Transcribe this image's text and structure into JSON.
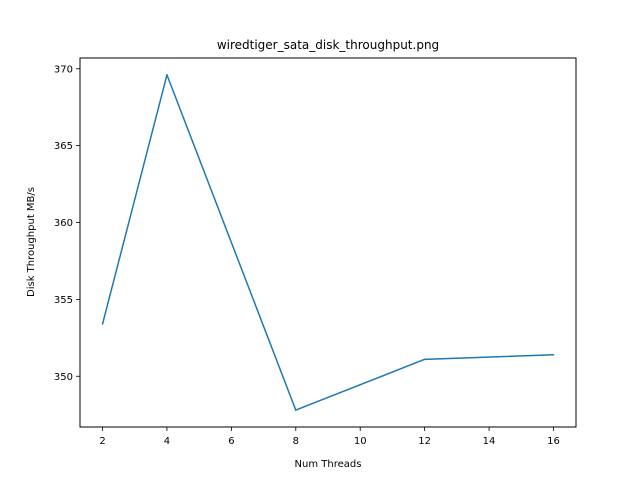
{
  "chart_data": {
    "type": "line",
    "title": "wiredtiger_sata_disk_throughput.png",
    "xlabel": "Num Threads",
    "ylabel": "Disk Throughput MB/s",
    "x": [
      2,
      4,
      8,
      12,
      16
    ],
    "series": [
      {
        "values": [
          353.4,
          369.6,
          347.8,
          351.1,
          351.4
        ],
        "color": "#1f77b4"
      }
    ],
    "xlim": [
      1.3,
      16.7
    ],
    "ylim": [
      346.7,
      370.7
    ],
    "xticks": [
      2,
      4,
      6,
      8,
      10,
      12,
      14,
      16
    ],
    "yticks": [
      350,
      355,
      360,
      365,
      370
    ],
    "grid": false,
    "legend": "none"
  }
}
